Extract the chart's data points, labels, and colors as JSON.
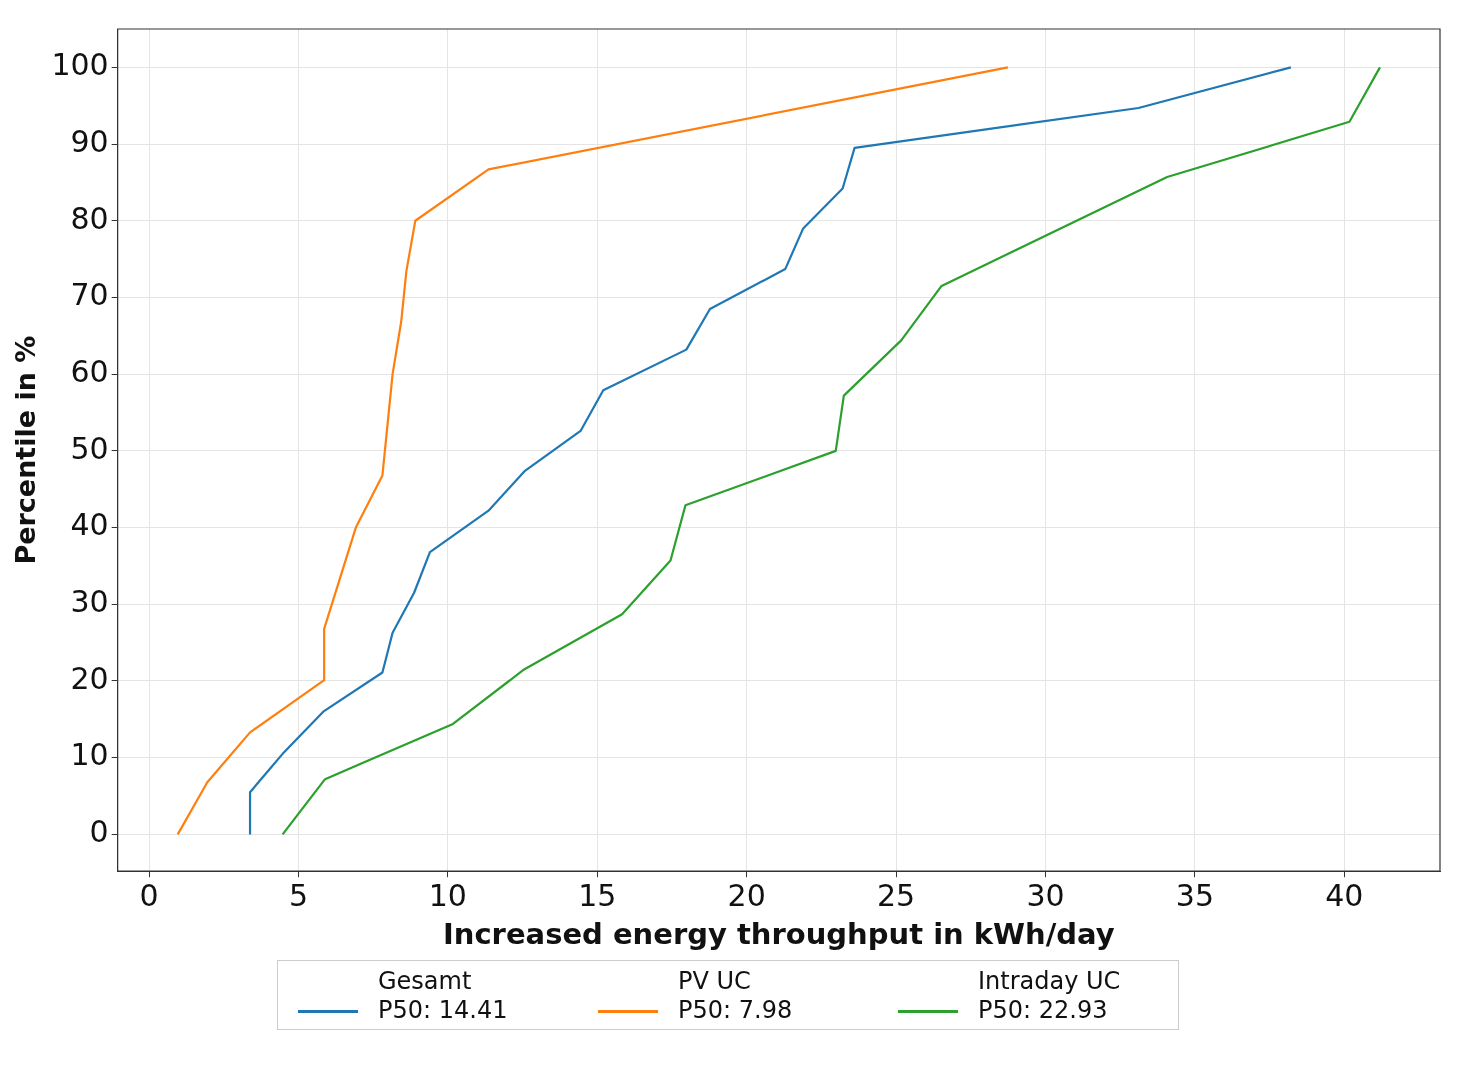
{
  "chart_data": {
    "type": "line",
    "xlabel": "Increased energy throughput in kWh/day",
    "ylabel": "Percentile in %",
    "xlim": [
      -1.05,
      43.2
    ],
    "ylim": [
      -4.8,
      105
    ],
    "xticks": [
      0,
      5,
      10,
      15,
      20,
      25,
      30,
      35,
      40
    ],
    "yticks": [
      0,
      10,
      20,
      30,
      40,
      50,
      60,
      70,
      80,
      90,
      100
    ],
    "grid": true,
    "legend": "bottom",
    "marker": "none",
    "line_style": "solid",
    "series": [
      {
        "name": "Gesamt\nP50: 14.41",
        "color": "#1f77b4",
        "x": [
          3.38,
          3.38,
          4.47,
          5.83,
          7.81,
          8.15,
          8.87,
          9.4,
          11.36,
          12.58,
          14.44,
          15.2,
          17.98,
          18.77,
          21.29,
          21.89,
          23.21,
          23.61,
          33.11,
          38.21
        ],
        "values": [
          0,
          5.5,
          10.5,
          16,
          21.1,
          26.3,
          31.5,
          36.8,
          42.2,
          47.4,
          52.6,
          57.9,
          63.2,
          68.5,
          73.7,
          79,
          84.2,
          89.5,
          94.7,
          100
        ]
      },
      {
        "name": "PV UC\nP50: 7.98",
        "color": "#ff7f0e",
        "x": [
          0.96,
          1.95,
          3.38,
          5.86,
          5.86,
          6.92,
          7.81,
          8.15,
          8.44,
          8.61,
          8.91,
          11.36,
          28.74
        ],
        "values": [
          0,
          6.8,
          13.3,
          20.1,
          26.8,
          40,
          46.8,
          60,
          66.9,
          73.4,
          80,
          86.7,
          100
        ]
      },
      {
        "name": "Intraday UC\nP50: 22.93",
        "color": "#2ca02c",
        "x": [
          4.47,
          5.89,
          10.17,
          12.55,
          15.83,
          17.45,
          17.95,
          22.98,
          23.25,
          25.17,
          26.52,
          34.07,
          40.17,
          41.19
        ],
        "values": [
          0,
          7.2,
          14.4,
          21.5,
          28.7,
          35.7,
          42.9,
          50,
          57.2,
          64.4,
          71.5,
          85.7,
          92.9,
          100
        ]
      }
    ]
  }
}
